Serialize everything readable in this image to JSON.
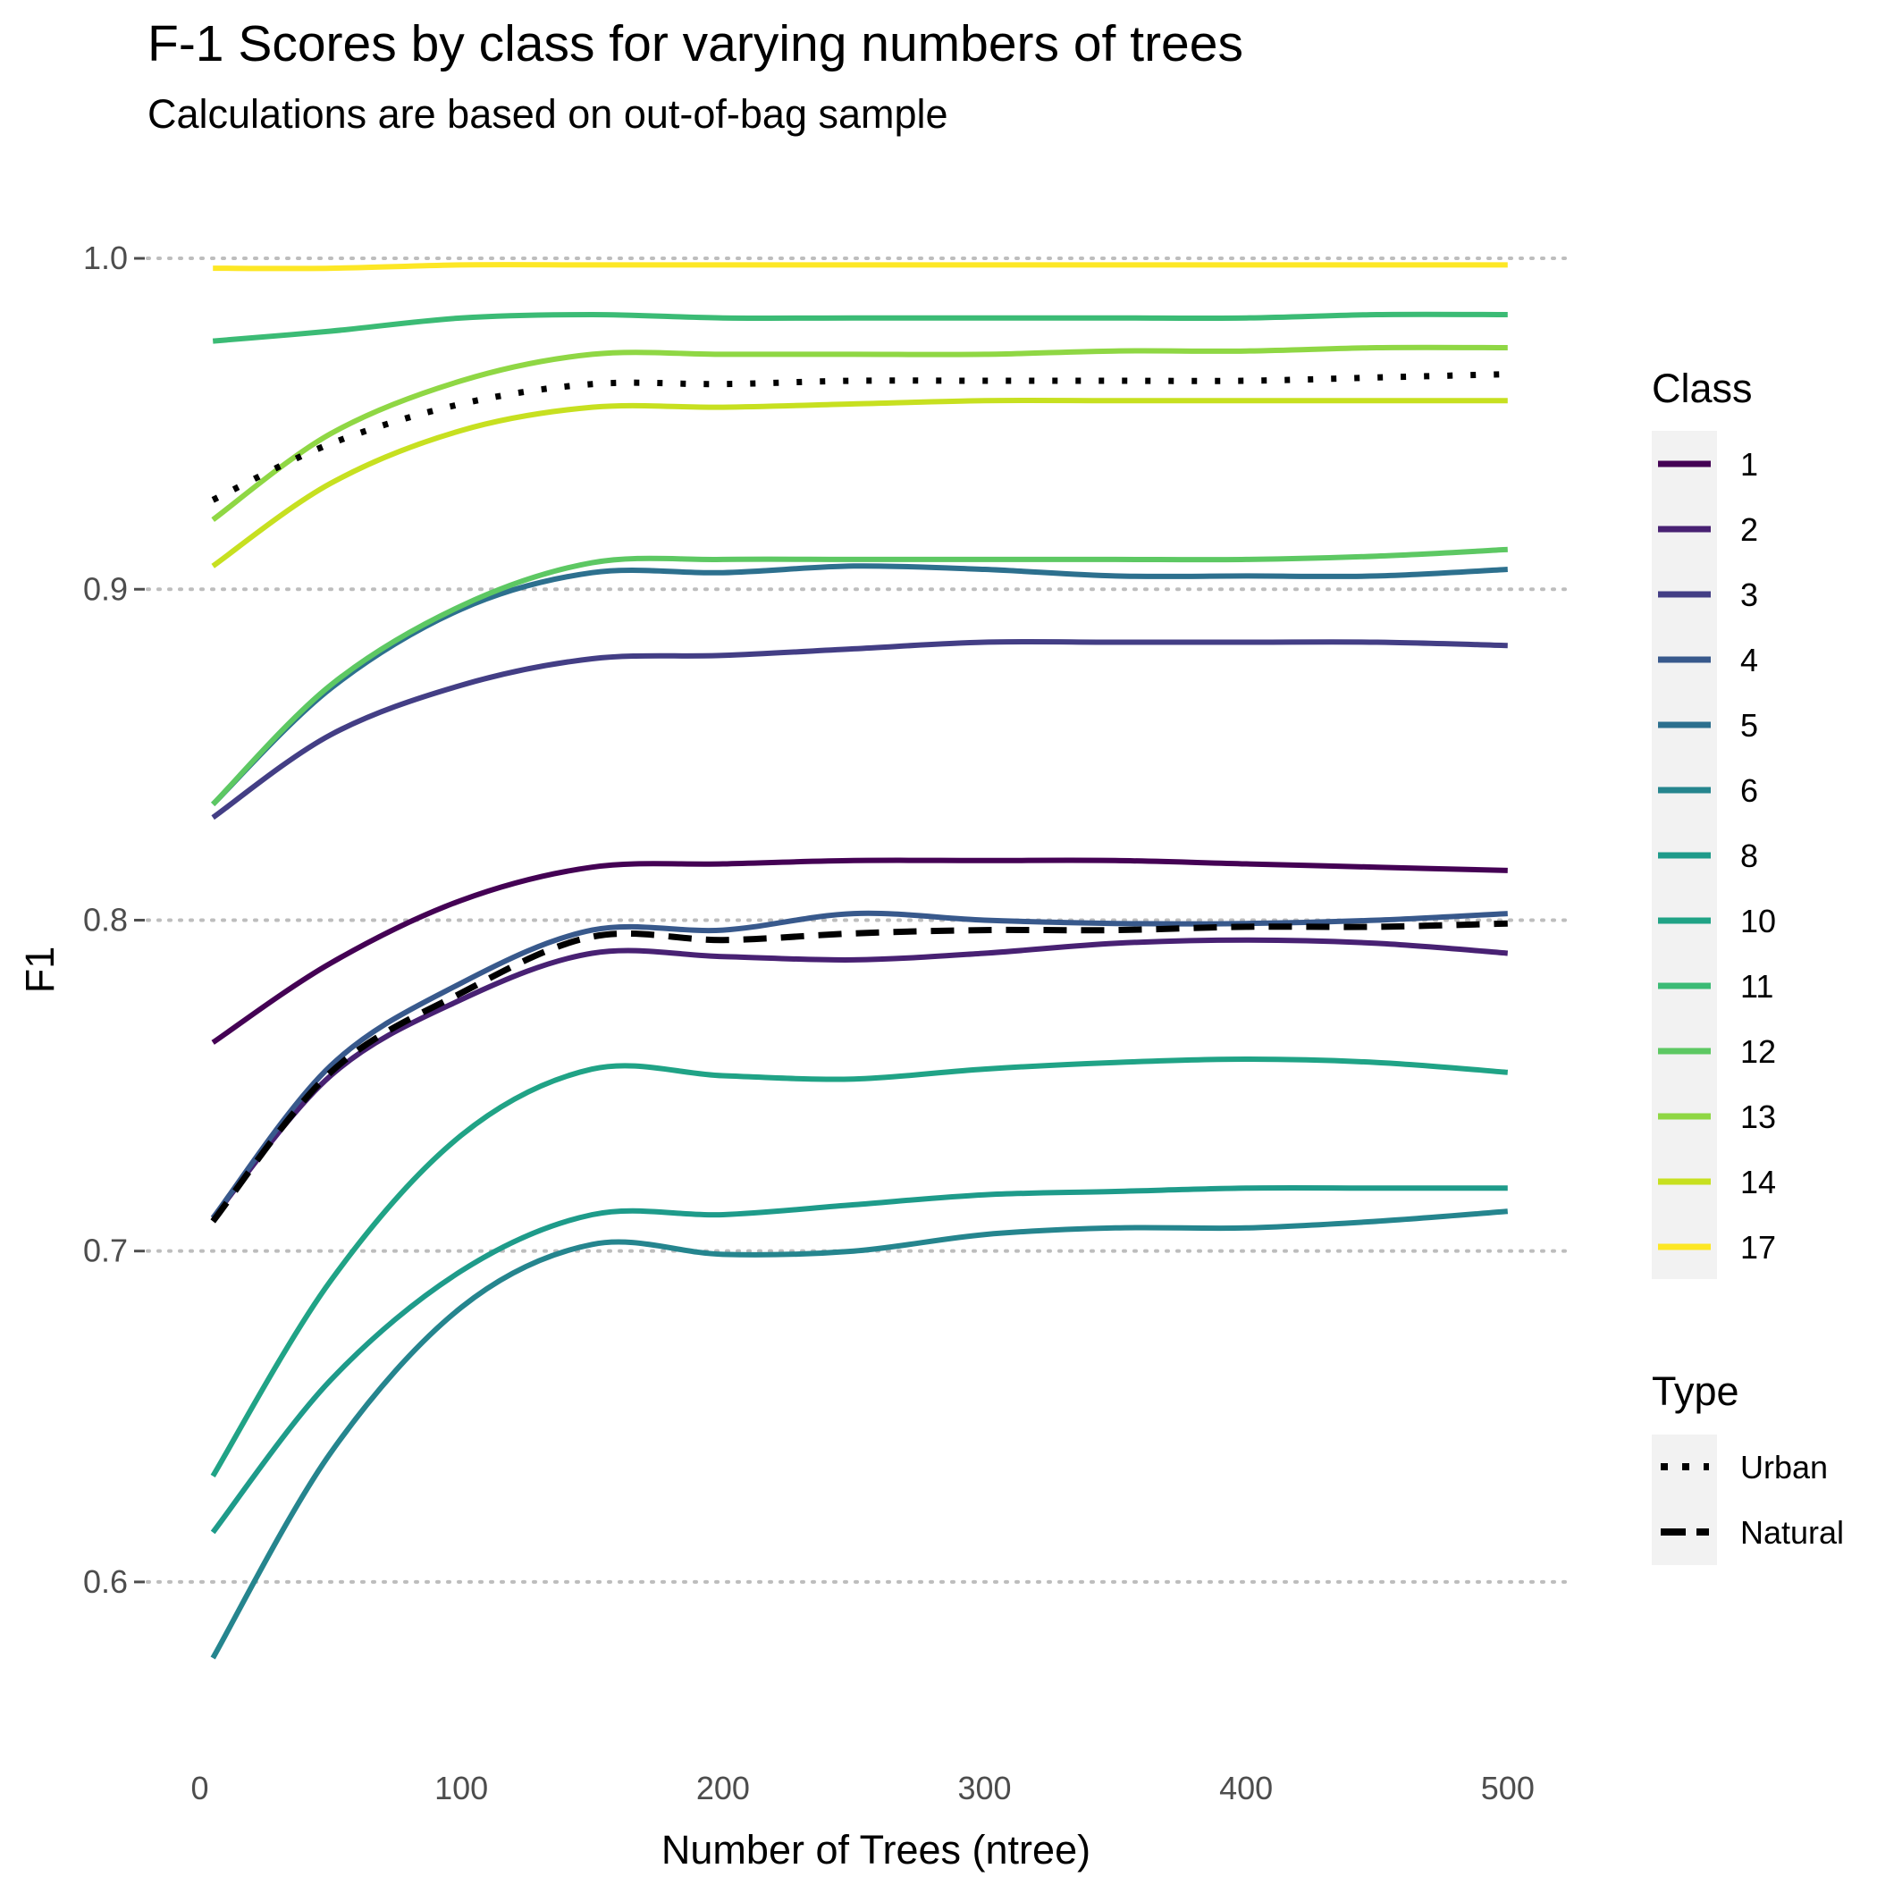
{
  "chart_data": {
    "type": "line",
    "title": "F-1 Scores by class for varying numbers of trees",
    "subtitle": "Calculations are based on out-of-bag sample",
    "xlabel": "Number of Trees (ntree)",
    "ylabel": "F1",
    "xlim": [
      -20,
      525
    ],
    "ylim": [
      0.55,
      1.02
    ],
    "x_ticks": [
      0,
      100,
      200,
      300,
      400,
      500
    ],
    "x_tick_labels": [
      "0",
      "100",
      "200",
      "300",
      "400",
      "500"
    ],
    "y_ticks": [
      0.6,
      0.7,
      0.8,
      0.9,
      1.0
    ],
    "y_tick_labels": [
      "0.6",
      "0.7",
      "0.8",
      "0.9",
      "1.0"
    ],
    "grid": "horizontal dotted",
    "legend_position": "right",
    "class_legend_title": "Class",
    "type_legend_title": "Type",
    "series": [
      {
        "name": "1",
        "color": "#440154",
        "x": [
          5,
          50,
          100,
          150,
          200,
          250,
          300,
          350,
          400,
          450,
          500
        ],
        "y": [
          0.763,
          0.787,
          0.806,
          0.816,
          0.817,
          0.818,
          0.818,
          0.818,
          0.817,
          0.816,
          0.815
        ]
      },
      {
        "name": "2",
        "color": "#482173",
        "x": [
          5,
          50,
          100,
          150,
          200,
          250,
          300,
          350,
          400,
          450,
          500
        ],
        "y": [
          0.71,
          0.753,
          0.776,
          0.79,
          0.789,
          0.788,
          0.79,
          0.793,
          0.794,
          0.793,
          0.79
        ]
      },
      {
        "name": "3",
        "color": "#433E85",
        "x": [
          5,
          50,
          100,
          150,
          200,
          250,
          300,
          350,
          400,
          450,
          500
        ],
        "y": [
          0.831,
          0.856,
          0.871,
          0.879,
          0.88,
          0.882,
          0.884,
          0.884,
          0.884,
          0.884,
          0.883
        ]
      },
      {
        "name": "4",
        "color": "#38598C",
        "x": [
          5,
          50,
          100,
          150,
          200,
          250,
          300,
          350,
          400,
          450,
          500
        ],
        "y": [
          0.71,
          0.756,
          0.781,
          0.797,
          0.797,
          0.802,
          0.8,
          0.799,
          0.799,
          0.8,
          0.802
        ]
      },
      {
        "name": "5",
        "color": "#2D708E",
        "x": [
          5,
          50,
          100,
          150,
          200,
          250,
          300,
          350,
          400,
          450,
          500
        ],
        "y": [
          0.835,
          0.87,
          0.894,
          0.905,
          0.905,
          0.907,
          0.906,
          0.904,
          0.904,
          0.904,
          0.906
        ]
      },
      {
        "name": "6",
        "color": "#25858E",
        "x": [
          5,
          50,
          100,
          150,
          200,
          250,
          300,
          350,
          400,
          450,
          500
        ],
        "y": [
          0.577,
          0.639,
          0.683,
          0.702,
          0.699,
          0.7,
          0.705,
          0.707,
          0.707,
          0.709,
          0.712
        ]
      },
      {
        "name": "8",
        "color": "#1E9B8A",
        "x": [
          5,
          50,
          100,
          150,
          200,
          250,
          300,
          350,
          400,
          450,
          500
        ],
        "y": [
          0.615,
          0.661,
          0.694,
          0.711,
          0.711,
          0.714,
          0.717,
          0.718,
          0.719,
          0.719,
          0.719
        ]
      },
      {
        "name": "10",
        "color": "#20A386",
        "x": [
          5,
          50,
          100,
          150,
          200,
          250,
          300,
          350,
          400,
          450,
          500
        ],
        "y": [
          0.632,
          0.691,
          0.735,
          0.755,
          0.753,
          0.752,
          0.755,
          0.757,
          0.758,
          0.757,
          0.754
        ]
      },
      {
        "name": "11",
        "color": "#3BBB75",
        "x": [
          5,
          50,
          100,
          150,
          200,
          250,
          300,
          350,
          400,
          450,
          500
        ],
        "y": [
          0.975,
          0.978,
          0.982,
          0.983,
          0.982,
          0.982,
          0.982,
          0.982,
          0.982,
          0.983,
          0.983
        ]
      },
      {
        "name": "12",
        "color": "#5DC863",
        "x": [
          5,
          50,
          100,
          150,
          200,
          250,
          300,
          350,
          400,
          450,
          500
        ],
        "y": [
          0.835,
          0.871,
          0.895,
          0.908,
          0.909,
          0.909,
          0.909,
          0.909,
          0.909,
          0.91,
          0.912
        ]
      },
      {
        "name": "13",
        "color": "#8FD744",
        "x": [
          5,
          50,
          100,
          150,
          200,
          250,
          300,
          350,
          400,
          450,
          500
        ],
        "y": [
          0.921,
          0.947,
          0.963,
          0.971,
          0.971,
          0.971,
          0.971,
          0.972,
          0.972,
          0.973,
          0.973
        ]
      },
      {
        "name": "14",
        "color": "#C7E020",
        "x": [
          5,
          50,
          100,
          150,
          200,
          250,
          300,
          350,
          400,
          450,
          500
        ],
        "y": [
          0.907,
          0.932,
          0.948,
          0.955,
          0.955,
          0.956,
          0.957,
          0.957,
          0.957,
          0.957,
          0.957
        ]
      },
      {
        "name": "17",
        "color": "#FDE725",
        "x": [
          5,
          50,
          100,
          150,
          200,
          250,
          300,
          350,
          400,
          450,
          500
        ],
        "y": [
          0.997,
          0.997,
          0.998,
          0.998,
          0.998,
          0.998,
          0.998,
          0.998,
          0.998,
          0.998,
          0.998
        ]
      }
    ],
    "type_series": [
      {
        "name": "Urban",
        "color": "#000000",
        "dash": "dotted",
        "x": [
          5,
          50,
          100,
          150,
          200,
          250,
          300,
          350,
          400,
          450,
          500
        ],
        "y": [
          0.927,
          0.944,
          0.956,
          0.962,
          0.962,
          0.963,
          0.963,
          0.963,
          0.963,
          0.964,
          0.965
        ]
      },
      {
        "name": "Natural",
        "color": "#000000",
        "dash": "dashed",
        "x": [
          5,
          50,
          100,
          150,
          200,
          250,
          300,
          350,
          400,
          450,
          500
        ],
        "y": [
          0.709,
          0.754,
          0.778,
          0.795,
          0.794,
          0.796,
          0.797,
          0.797,
          0.798,
          0.798,
          0.799
        ]
      }
    ]
  }
}
